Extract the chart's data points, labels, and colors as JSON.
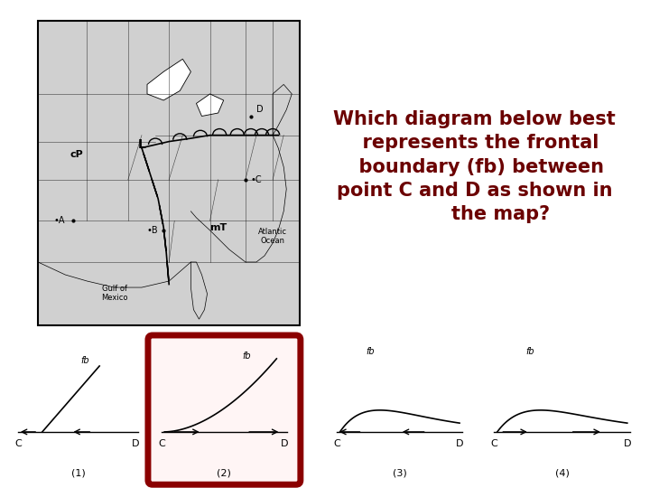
{
  "title_text": "Which diagram below best\n  represents the frontal\n  boundary (fb) between\npoint C and D as shown in\n        the map?",
  "title_color": "#6B0000",
  "title_fontsize": 15,
  "bg_color": "#ffffff",
  "selected_box_color": "#8B0000",
  "selected_box_fill": "#fff5f5",
  "diagram_labels": [
    "(1)",
    "(2)",
    "(3)",
    "(4)"
  ]
}
